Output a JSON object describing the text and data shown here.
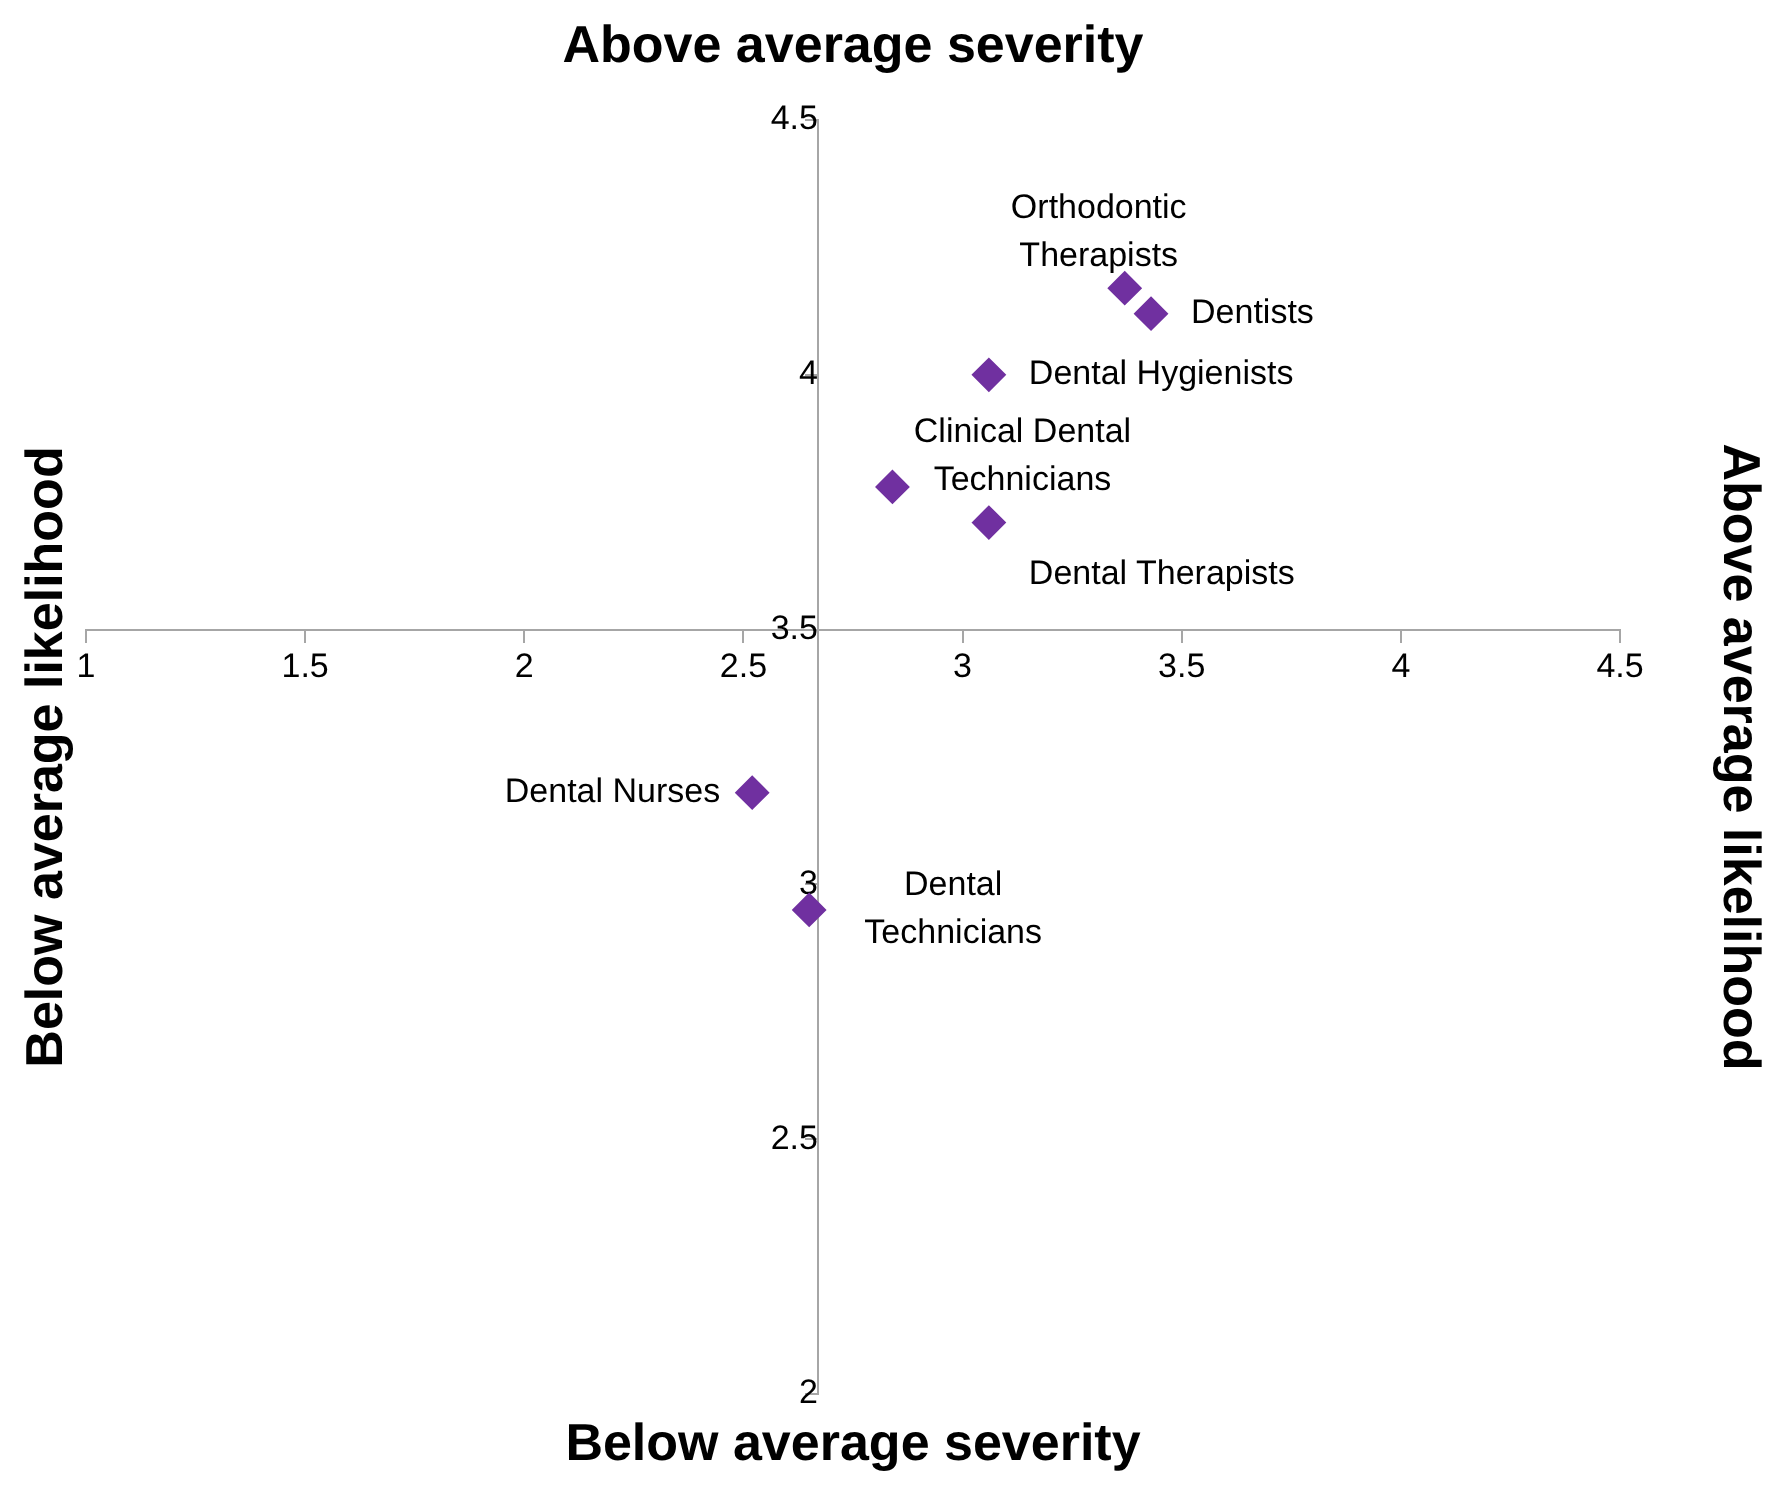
{
  "chart_data": {
    "type": "scatter",
    "title": "Above average severity",
    "xlabel": "Below average severity",
    "ylabel": "Below average likelihood",
    "y2label": "Above average likelihood",
    "x": [
      3.37,
      3.43,
      3.06,
      2.84,
      3.06,
      2.52,
      2.65
    ],
    "series": [
      {
        "color": "#7030a0",
        "values": [
          4.17,
          4.12,
          4.0,
          3.78,
          3.71,
          3.18,
          2.95
        ]
      }
    ],
    "annotations": [
      {
        "text": "Orthodontic Therapists",
        "x": 3.37,
        "y": 4.17
      },
      {
        "text": "Dentists",
        "x": 3.43,
        "y": 4.12
      },
      {
        "text": "Dental Hygienists",
        "x": 3.06,
        "y": 4.0
      },
      {
        "text": "Clinical Dental Technicians",
        "x": 2.84,
        "y": 3.78
      },
      {
        "text": "Dental Therapists",
        "x": 3.06,
        "y": 3.71
      },
      {
        "text": "Dental Nurses",
        "x": 2.52,
        "y": 3.18
      },
      {
        "text": "Dental Technicians",
        "x": 2.65,
        "y": 2.95
      }
    ],
    "xlim": [
      1,
      4.5
    ],
    "xticks": [
      1,
      1.5,
      2,
      2.5,
      3,
      3.5,
      4,
      4.5
    ],
    "ylim": [
      2,
      4.5
    ],
    "yticks": [
      2,
      2.5,
      3,
      3.5,
      4,
      4.5
    ],
    "grid": false,
    "legend": false,
    "marker": "diamond"
  }
}
